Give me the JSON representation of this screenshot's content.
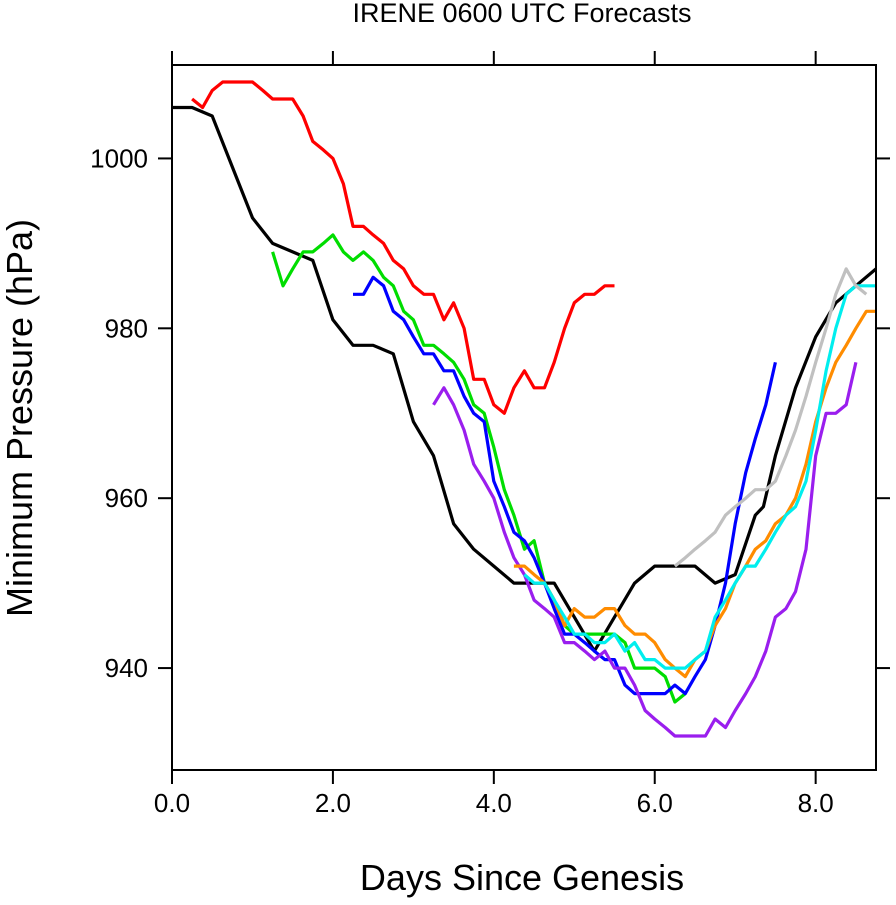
{
  "chart_data": {
    "type": "line",
    "title": "IRENE 0600 UTC Forecasts",
    "xlabel": "Days Since Genesis",
    "ylabel": "Minimum Pressure (hPa)",
    "xlim": [
      0,
      8.75
    ],
    "ylim": [
      928,
      1011
    ],
    "x_ticks": [
      "0.0",
      "2.0",
      "4.0",
      "6.0",
      "8.0"
    ],
    "y_ticks": [
      "940",
      "960",
      "980",
      "1000"
    ],
    "grid": false,
    "legend": "none",
    "series": [
      {
        "color": "#ff0000",
        "points": [
          [
            0.25,
            1007
          ],
          [
            0.38,
            1006
          ],
          [
            0.5,
            1008
          ],
          [
            0.63,
            1009
          ],
          [
            0.75,
            1009
          ],
          [
            0.88,
            1009
          ],
          [
            1.0,
            1009
          ],
          [
            1.13,
            1008
          ],
          [
            1.25,
            1007
          ],
          [
            1.38,
            1007
          ],
          [
            1.5,
            1007
          ],
          [
            1.63,
            1005
          ],
          [
            1.75,
            1002
          ],
          [
            1.88,
            1001
          ],
          [
            2.0,
            1000
          ],
          [
            2.13,
            997
          ],
          [
            2.25,
            992
          ],
          [
            2.38,
            992
          ],
          [
            2.5,
            991
          ],
          [
            2.63,
            990
          ],
          [
            2.75,
            988
          ],
          [
            2.88,
            987
          ],
          [
            3.0,
            985
          ],
          [
            3.13,
            984
          ],
          [
            3.25,
            984
          ],
          [
            3.38,
            981
          ],
          [
            3.5,
            983
          ],
          [
            3.63,
            980
          ],
          [
            3.75,
            974
          ],
          [
            3.88,
            974
          ],
          [
            4.0,
            971
          ],
          [
            4.13,
            970
          ],
          [
            4.25,
            973
          ],
          [
            4.38,
            975
          ],
          [
            4.5,
            973
          ],
          [
            4.63,
            973
          ],
          [
            4.75,
            976
          ],
          [
            4.88,
            980
          ],
          [
            5.0,
            983
          ],
          [
            5.13,
            984
          ],
          [
            5.25,
            984
          ],
          [
            5.38,
            985
          ],
          [
            5.5,
            985
          ]
        ]
      },
      {
        "color": "#000000",
        "points": [
          [
            0.0,
            1006
          ],
          [
            0.25,
            1006
          ],
          [
            0.5,
            1005
          ],
          [
            0.75,
            999
          ],
          [
            1.0,
            993
          ],
          [
            1.25,
            990
          ],
          [
            1.5,
            989
          ],
          [
            1.75,
            988
          ],
          [
            2.0,
            981
          ],
          [
            2.25,
            978
          ],
          [
            2.5,
            978
          ],
          [
            2.75,
            977
          ],
          [
            3.0,
            969
          ],
          [
            3.25,
            965
          ],
          [
            3.5,
            957
          ],
          [
            3.75,
            954
          ],
          [
            4.0,
            952
          ],
          [
            4.25,
            950
          ],
          [
            4.5,
            950
          ],
          [
            4.75,
            950
          ],
          [
            5.0,
            946
          ],
          [
            5.25,
            942
          ],
          [
            5.5,
            946
          ],
          [
            5.75,
            950
          ],
          [
            6.0,
            952
          ],
          [
            6.25,
            952
          ],
          [
            6.5,
            952
          ],
          [
            6.75,
            950
          ],
          [
            7.0,
            951
          ],
          [
            7.25,
            958
          ],
          [
            7.35,
            959
          ],
          [
            7.5,
            965
          ],
          [
            7.75,
            973
          ],
          [
            8.0,
            979
          ],
          [
            8.25,
            983
          ],
          [
            8.5,
            985
          ],
          [
            8.75,
            987
          ]
        ]
      },
      {
        "color": "#00dd00",
        "points": [
          [
            1.25,
            989
          ],
          [
            1.38,
            985
          ],
          [
            1.5,
            987
          ],
          [
            1.63,
            989
          ],
          [
            1.75,
            989
          ],
          [
            1.88,
            990
          ],
          [
            2.0,
            991
          ],
          [
            2.13,
            989
          ],
          [
            2.25,
            988
          ],
          [
            2.38,
            989
          ],
          [
            2.5,
            988
          ],
          [
            2.63,
            986
          ],
          [
            2.75,
            985
          ],
          [
            2.88,
            982
          ],
          [
            3.0,
            981
          ],
          [
            3.13,
            978
          ],
          [
            3.25,
            978
          ],
          [
            3.38,
            977
          ],
          [
            3.5,
            976
          ],
          [
            3.63,
            974
          ],
          [
            3.75,
            971
          ],
          [
            3.88,
            970
          ],
          [
            4.0,
            966
          ],
          [
            4.13,
            961
          ],
          [
            4.25,
            958
          ],
          [
            4.38,
            954
          ],
          [
            4.5,
            955
          ],
          [
            4.63,
            950
          ],
          [
            4.75,
            948
          ],
          [
            4.88,
            945
          ],
          [
            5.0,
            944
          ],
          [
            5.13,
            944
          ],
          [
            5.25,
            944
          ],
          [
            5.38,
            944
          ],
          [
            5.5,
            944
          ],
          [
            5.63,
            943
          ],
          [
            5.75,
            940
          ],
          [
            5.88,
            940
          ],
          [
            6.0,
            940
          ],
          [
            6.13,
            939
          ],
          [
            6.25,
            936
          ],
          [
            6.38,
            937
          ]
        ]
      },
      {
        "color": "#0000ff",
        "points": [
          [
            2.25,
            984
          ],
          [
            2.38,
            984
          ],
          [
            2.5,
            986
          ],
          [
            2.63,
            985
          ],
          [
            2.75,
            982
          ],
          [
            2.88,
            981
          ],
          [
            3.0,
            979
          ],
          [
            3.13,
            977
          ],
          [
            3.25,
            977
          ],
          [
            3.38,
            975
          ],
          [
            3.5,
            975
          ],
          [
            3.63,
            972
          ],
          [
            3.75,
            970
          ],
          [
            3.88,
            969
          ],
          [
            4.0,
            962
          ],
          [
            4.13,
            959
          ],
          [
            4.25,
            956
          ],
          [
            4.38,
            955
          ],
          [
            4.5,
            953
          ],
          [
            4.63,
            950
          ],
          [
            4.75,
            947
          ],
          [
            4.88,
            944
          ],
          [
            5.0,
            944
          ],
          [
            5.13,
            943
          ],
          [
            5.25,
            942
          ],
          [
            5.38,
            941
          ],
          [
            5.5,
            941
          ],
          [
            5.63,
            938
          ],
          [
            5.75,
            937
          ],
          [
            5.88,
            937
          ],
          [
            6.0,
            937
          ],
          [
            6.13,
            937
          ],
          [
            6.25,
            938
          ],
          [
            6.38,
            937
          ],
          [
            6.5,
            939
          ],
          [
            6.63,
            941
          ],
          [
            6.75,
            945
          ],
          [
            6.88,
            950
          ],
          [
            7.0,
            957
          ],
          [
            7.13,
            963
          ],
          [
            7.25,
            967
          ],
          [
            7.38,
            971
          ],
          [
            7.5,
            976
          ]
        ]
      },
      {
        "color": "#9a1eee",
        "points": [
          [
            3.25,
            971
          ],
          [
            3.38,
            973
          ],
          [
            3.5,
            971
          ],
          [
            3.63,
            968
          ],
          [
            3.75,
            964
          ],
          [
            3.88,
            962
          ],
          [
            4.0,
            960
          ],
          [
            4.13,
            956
          ],
          [
            4.25,
            953
          ],
          [
            4.38,
            951
          ],
          [
            4.5,
            948
          ],
          [
            4.63,
            947
          ],
          [
            4.75,
            946
          ],
          [
            4.88,
            943
          ],
          [
            5.0,
            943
          ],
          [
            5.13,
            942
          ],
          [
            5.25,
            941
          ],
          [
            5.38,
            942
          ],
          [
            5.5,
            940
          ],
          [
            5.63,
            940
          ],
          [
            5.75,
            938
          ],
          [
            5.88,
            935
          ],
          [
            6.0,
            934
          ],
          [
            6.13,
            933
          ],
          [
            6.25,
            932
          ],
          [
            6.38,
            932
          ],
          [
            6.5,
            932
          ],
          [
            6.63,
            932
          ],
          [
            6.75,
            934
          ],
          [
            6.88,
            933
          ],
          [
            7.0,
            935
          ],
          [
            7.13,
            937
          ],
          [
            7.25,
            939
          ],
          [
            7.38,
            942
          ],
          [
            7.5,
            946
          ],
          [
            7.63,
            947
          ],
          [
            7.75,
            949
          ],
          [
            7.88,
            954
          ],
          [
            8.0,
            965
          ],
          [
            8.13,
            970
          ],
          [
            8.25,
            970
          ],
          [
            8.38,
            971
          ],
          [
            8.5,
            976
          ]
        ]
      },
      {
        "color": "#ff8c00",
        "points": [
          [
            4.25,
            952
          ],
          [
            4.38,
            952
          ],
          [
            4.5,
            951
          ],
          [
            4.63,
            950
          ],
          [
            4.75,
            948
          ],
          [
            4.88,
            945
          ],
          [
            5.0,
            947
          ],
          [
            5.13,
            946
          ],
          [
            5.25,
            946
          ],
          [
            5.38,
            947
          ],
          [
            5.5,
            947
          ],
          [
            5.63,
            945
          ],
          [
            5.75,
            944
          ],
          [
            5.88,
            944
          ],
          [
            6.0,
            943
          ],
          [
            6.13,
            941
          ],
          [
            6.25,
            940
          ],
          [
            6.38,
            939
          ],
          [
            6.5,
            941
          ],
          [
            6.63,
            942
          ],
          [
            6.75,
            945
          ],
          [
            6.88,
            947
          ],
          [
            7.0,
            950
          ],
          [
            7.13,
            952
          ],
          [
            7.25,
            954
          ],
          [
            7.38,
            955
          ],
          [
            7.5,
            957
          ],
          [
            7.63,
            958
          ],
          [
            7.75,
            960
          ],
          [
            7.88,
            964
          ],
          [
            8.0,
            969
          ],
          [
            8.13,
            973
          ],
          [
            8.25,
            976
          ],
          [
            8.38,
            978
          ],
          [
            8.5,
            980
          ],
          [
            8.63,
            982
          ],
          [
            8.75,
            982
          ]
        ]
      },
      {
        "color": "#00eeee",
        "points": [
          [
            4.38,
            951
          ],
          [
            4.5,
            950
          ],
          [
            4.63,
            950
          ],
          [
            4.75,
            948
          ],
          [
            4.88,
            946
          ],
          [
            5.0,
            944
          ],
          [
            5.13,
            944
          ],
          [
            5.25,
            943
          ],
          [
            5.38,
            943
          ],
          [
            5.5,
            944
          ],
          [
            5.63,
            942
          ],
          [
            5.75,
            943
          ],
          [
            5.88,
            941
          ],
          [
            6.0,
            941
          ],
          [
            6.13,
            940
          ],
          [
            6.25,
            940
          ],
          [
            6.38,
            940
          ],
          [
            6.5,
            941
          ],
          [
            6.63,
            942
          ],
          [
            6.75,
            946
          ],
          [
            6.88,
            948
          ],
          [
            7.0,
            950
          ],
          [
            7.13,
            952
          ],
          [
            7.25,
            952
          ],
          [
            7.38,
            954
          ],
          [
            7.5,
            956
          ],
          [
            7.63,
            958
          ],
          [
            7.75,
            959
          ],
          [
            7.88,
            962
          ],
          [
            8.0,
            968
          ],
          [
            8.13,
            975
          ],
          [
            8.25,
            980
          ],
          [
            8.38,
            984
          ],
          [
            8.5,
            985
          ],
          [
            8.63,
            985
          ],
          [
            8.75,
            985
          ]
        ]
      },
      {
        "color": "#c0c0c0",
        "points": [
          [
            6.25,
            952
          ],
          [
            6.38,
            953
          ],
          [
            6.5,
            954
          ],
          [
            6.63,
            955
          ],
          [
            6.75,
            956
          ],
          [
            6.88,
            958
          ],
          [
            7.0,
            959
          ],
          [
            7.13,
            960
          ],
          [
            7.25,
            961
          ],
          [
            7.38,
            961
          ],
          [
            7.5,
            962
          ],
          [
            7.63,
            965
          ],
          [
            7.75,
            968
          ],
          [
            7.88,
            972
          ],
          [
            8.0,
            976
          ],
          [
            8.13,
            980
          ],
          [
            8.25,
            984
          ],
          [
            8.38,
            987
          ],
          [
            8.5,
            985
          ],
          [
            8.63,
            984
          ]
        ]
      }
    ]
  }
}
